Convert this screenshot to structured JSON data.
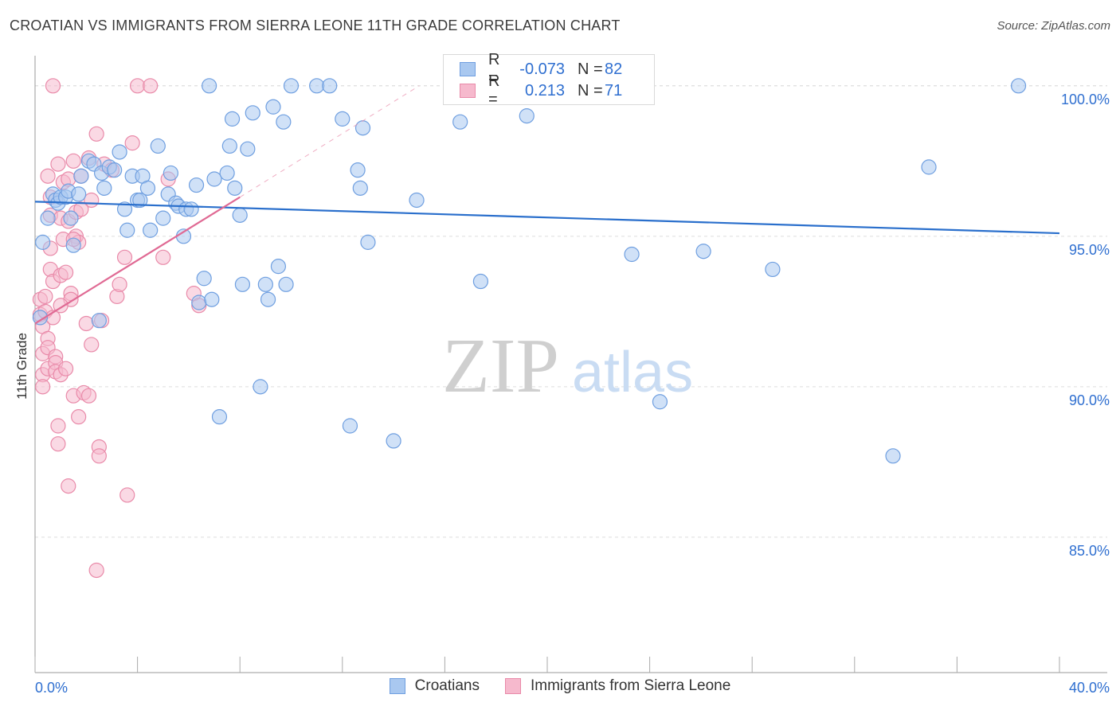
{
  "title": "CROATIAN VS IMMIGRANTS FROM SIERRA LEONE 11TH GRADE CORRELATION CHART",
  "source": "Source: ZipAtlas.com",
  "watermark": {
    "zip": "ZIP",
    "atlas": "atlas"
  },
  "legend_top": {
    "rows": [
      {
        "r_label": "R =",
        "r_value": "-0.073",
        "n_label": "N =",
        "n_value": "82"
      },
      {
        "r_label": "R =",
        "r_value": "0.213",
        "n_label": "N =",
        "n_value": "71"
      }
    ]
  },
  "legend_bottom": {
    "items": [
      {
        "label": "Croatians"
      },
      {
        "label": "Immigrants from Sierra Leone"
      }
    ]
  },
  "colors": {
    "blue_fill": "#a9c8f0",
    "blue_edge": "#6f9fe0",
    "blue_line": "#2a6fcc",
    "pink_fill": "#f6b9cd",
    "pink_edge": "#e98aa9",
    "pink_line": "#e06a94",
    "grid": "#dddddd",
    "axis": "#999999",
    "tick_text": "#2f6fd0"
  },
  "chart_data": {
    "type": "scatter",
    "title": "CROATIAN VS IMMIGRANTS FROM SIERRA LEONE 11TH GRADE CORRELATION CHART",
    "xlabel": "",
    "ylabel": "11th Grade",
    "xlim": [
      0,
      40
    ],
    "ylim": [
      80.5,
      101
    ],
    "x_tick_labels": [
      "0.0%",
      "40.0%"
    ],
    "y_ticks": [
      {
        "value": 85,
        "label": "85.0%"
      },
      {
        "value": 90,
        "label": "90.0%"
      },
      {
        "value": 95,
        "label": "95.0%"
      },
      {
        "value": 100,
        "label": "100.0%"
      }
    ],
    "series": [
      {
        "name": "Croatians",
        "R": -0.073,
        "N": 82,
        "trend": {
          "x": [
            0,
            40
          ],
          "y": [
            96.15,
            95.1
          ]
        },
        "points": [
          [
            0.3,
            94.8
          ],
          [
            0.5,
            95.6
          ],
          [
            0.7,
            96.4
          ],
          [
            0.8,
            96.2
          ],
          [
            0.9,
            96.1
          ],
          [
            1.0,
            96.3
          ],
          [
            1.2,
            96.3
          ],
          [
            1.3,
            96.5
          ],
          [
            1.4,
            95.6
          ],
          [
            1.5,
            94.7
          ],
          [
            1.7,
            96.4
          ],
          [
            1.8,
            97.0
          ],
          [
            2.1,
            97.5
          ],
          [
            2.3,
            97.4
          ],
          [
            2.6,
            97.1
          ],
          [
            2.7,
            96.6
          ],
          [
            2.9,
            97.3
          ],
          [
            3.1,
            97.2
          ],
          [
            3.3,
            97.8
          ],
          [
            3.5,
            95.9
          ],
          [
            3.6,
            95.2
          ],
          [
            3.8,
            97.0
          ],
          [
            4.0,
            96.2
          ],
          [
            4.1,
            96.2
          ],
          [
            4.2,
            97.0
          ],
          [
            4.4,
            96.6
          ],
          [
            4.5,
            95.2
          ],
          [
            4.8,
            98.0
          ],
          [
            5.0,
            95.6
          ],
          [
            5.2,
            96.4
          ],
          [
            5.3,
            97.1
          ],
          [
            5.5,
            96.1
          ],
          [
            5.6,
            96.0
          ],
          [
            5.8,
            95.0
          ],
          [
            5.9,
            95.9
          ],
          [
            6.1,
            95.9
          ],
          [
            6.3,
            96.7
          ],
          [
            6.4,
            92.8
          ],
          [
            6.6,
            93.6
          ],
          [
            6.9,
            92.9
          ],
          [
            7.0,
            96.9
          ],
          [
            7.2,
            89.0
          ],
          [
            7.5,
            97.1
          ],
          [
            7.6,
            98.0
          ],
          [
            7.7,
            98.9
          ],
          [
            7.8,
            96.6
          ],
          [
            8.0,
            95.7
          ],
          [
            8.1,
            93.4
          ],
          [
            8.3,
            97.9
          ],
          [
            8.5,
            99.1
          ],
          [
            8.8,
            90.0
          ],
          [
            9.0,
            93.4
          ],
          [
            9.1,
            92.9
          ],
          [
            9.3,
            99.3
          ],
          [
            9.5,
            94.0
          ],
          [
            9.7,
            98.8
          ],
          [
            9.8,
            93.4
          ],
          [
            10.0,
            100.0
          ],
          [
            11.0,
            100.0
          ],
          [
            11.5,
            100.0
          ],
          [
            12.0,
            98.9
          ],
          [
            12.3,
            88.7
          ],
          [
            12.6,
            97.2
          ],
          [
            12.7,
            96.6
          ],
          [
            12.8,
            98.6
          ],
          [
            13.0,
            94.8
          ],
          [
            14.0,
            88.2
          ],
          [
            14.9,
            96.2
          ],
          [
            16.6,
            98.8
          ],
          [
            17.4,
            93.5
          ],
          [
            18.6,
            100.0
          ],
          [
            19.2,
            99.0
          ],
          [
            23.3,
            94.4
          ],
          [
            24.4,
            89.5
          ],
          [
            26.1,
            94.5
          ],
          [
            28.8,
            93.9
          ],
          [
            33.5,
            87.7
          ],
          [
            34.9,
            97.3
          ],
          [
            38.4,
            100.0
          ],
          [
            2.5,
            92.2
          ],
          [
            0.2,
            92.3
          ],
          [
            6.8,
            100.0
          ]
        ]
      },
      {
        "name": "Immigrants from Sierra Leone",
        "R": 0.213,
        "N": 71,
        "trend": {
          "x": [
            0,
            8
          ],
          "y": [
            92.1,
            96.3
          ]
        },
        "trend_dashed": {
          "x": [
            8,
            15
          ],
          "y": [
            96.3,
            100.0
          ]
        },
        "points": [
          [
            0.2,
            92.9
          ],
          [
            0.2,
            92.4
          ],
          [
            0.3,
            92.0
          ],
          [
            0.3,
            91.1
          ],
          [
            0.3,
            90.4
          ],
          [
            0.4,
            93.0
          ],
          [
            0.4,
            92.5
          ],
          [
            0.5,
            91.6
          ],
          [
            0.5,
            91.3
          ],
          [
            0.5,
            90.6
          ],
          [
            0.6,
            96.3
          ],
          [
            0.6,
            95.7
          ],
          [
            0.6,
            94.6
          ],
          [
            0.6,
            93.9
          ],
          [
            0.7,
            93.5
          ],
          [
            0.7,
            92.3
          ],
          [
            0.8,
            91.0
          ],
          [
            0.8,
            90.8
          ],
          [
            0.8,
            90.5
          ],
          [
            0.9,
            88.7
          ],
          [
            0.9,
            88.1
          ],
          [
            1.0,
            95.6
          ],
          [
            1.0,
            93.7
          ],
          [
            1.0,
            90.4
          ],
          [
            1.1,
            96.8
          ],
          [
            1.1,
            94.9
          ],
          [
            1.2,
            93.8
          ],
          [
            1.2,
            90.6
          ],
          [
            1.3,
            96.9
          ],
          [
            1.3,
            95.5
          ],
          [
            1.4,
            93.1
          ],
          [
            1.4,
            92.9
          ],
          [
            1.5,
            97.5
          ],
          [
            1.5,
            89.7
          ],
          [
            1.6,
            95.8
          ],
          [
            1.6,
            95.0
          ],
          [
            1.7,
            94.8
          ],
          [
            1.7,
            89.0
          ],
          [
            1.8,
            97.0
          ],
          [
            1.9,
            89.8
          ],
          [
            2.0,
            92.1
          ],
          [
            2.1,
            97.6
          ],
          [
            2.1,
            89.7
          ],
          [
            2.2,
            96.2
          ],
          [
            2.2,
            91.4
          ],
          [
            2.4,
            98.4
          ],
          [
            2.5,
            88.0
          ],
          [
            2.5,
            87.7
          ],
          [
            2.6,
            92.2
          ],
          [
            2.7,
            97.4
          ],
          [
            3.0,
            97.2
          ],
          [
            3.2,
            93.0
          ],
          [
            3.3,
            93.4
          ],
          [
            3.5,
            94.3
          ],
          [
            3.6,
            86.4
          ],
          [
            3.8,
            98.1
          ],
          [
            4.0,
            100.0
          ],
          [
            4.5,
            100.0
          ],
          [
            5.0,
            94.3
          ],
          [
            5.2,
            96.9
          ],
          [
            1.3,
            86.7
          ],
          [
            2.4,
            83.9
          ],
          [
            0.7,
            100.0
          ],
          [
            1.0,
            92.7
          ],
          [
            1.5,
            94.9
          ],
          [
            6.2,
            93.1
          ],
          [
            6.4,
            92.7
          ],
          [
            0.5,
            97.0
          ],
          [
            0.3,
            90.0
          ],
          [
            1.8,
            95.9
          ],
          [
            0.9,
            97.4
          ]
        ]
      }
    ]
  }
}
